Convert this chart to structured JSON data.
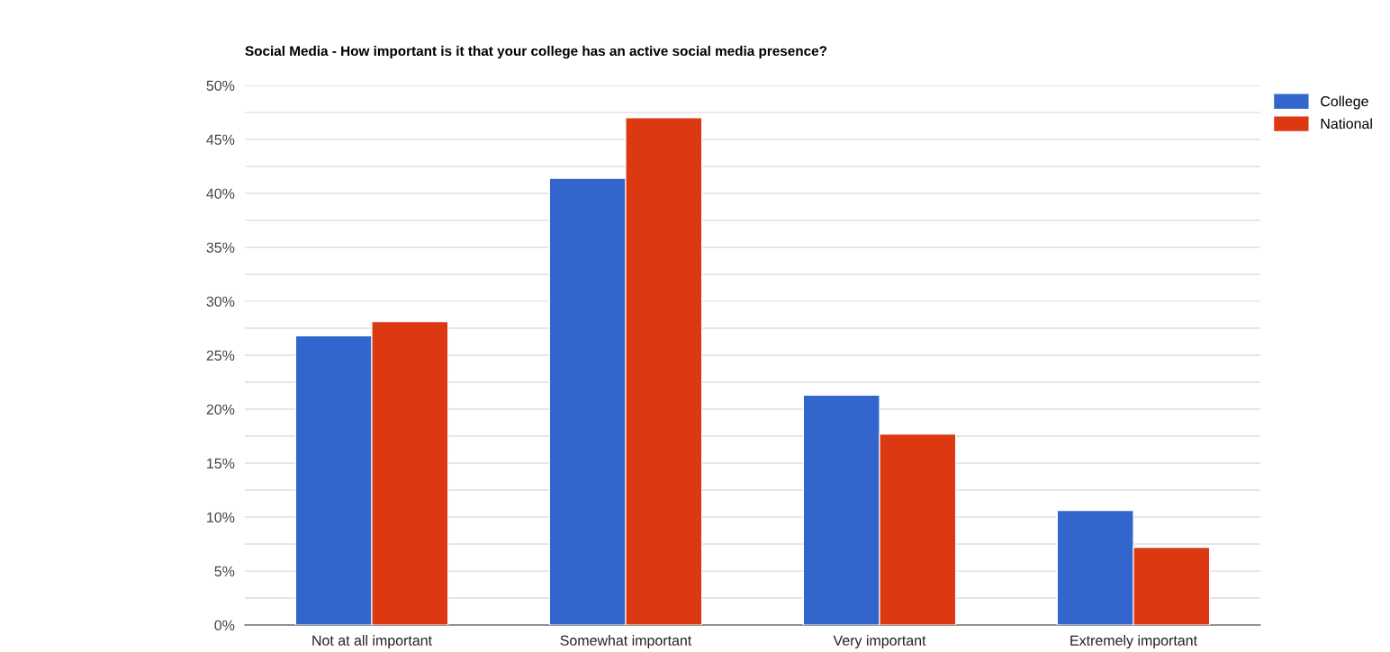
{
  "chart_data": {
    "type": "bar",
    "title": "Social Media - How important is it that your college has an active social media presence?",
    "categories": [
      "Not at all important",
      "Somewhat important",
      "Very important",
      "Extremely important"
    ],
    "series": [
      {
        "name": "College",
        "color": "#3366cc",
        "values": [
          26.8,
          41.4,
          21.3,
          10.6
        ]
      },
      {
        "name": "National",
        "color": "#dc3912",
        "values": [
          28.1,
          47.0,
          17.7,
          7.2
        ]
      }
    ],
    "ylim": [
      0,
      50
    ],
    "yticks": [
      {
        "value": 0,
        "label": "0%"
      },
      {
        "value": 2.5,
        "label": null
      },
      {
        "value": 5,
        "label": "5%"
      },
      {
        "value": 7.5,
        "label": null
      },
      {
        "value": 10,
        "label": "10%"
      },
      {
        "value": 12.5,
        "label": null
      },
      {
        "value": 15,
        "label": "15%"
      },
      {
        "value": 17.5,
        "label": null
      },
      {
        "value": 20,
        "label": "20%"
      },
      {
        "value": 22.5,
        "label": null
      },
      {
        "value": 25,
        "label": "25%"
      },
      {
        "value": 27.5,
        "label": null
      },
      {
        "value": 30,
        "label": "30%"
      },
      {
        "value": 32.5,
        "label": null
      },
      {
        "value": 35,
        "label": "35%"
      },
      {
        "value": 37.5,
        "label": null
      },
      {
        "value": 40,
        "label": "40%"
      },
      {
        "value": 42.5,
        "label": null
      },
      {
        "value": 45,
        "label": "45%"
      },
      {
        "value": 47.5,
        "label": null
      },
      {
        "value": 50,
        "label": "50%"
      }
    ],
    "grid": "y",
    "legend": "top right"
  }
}
